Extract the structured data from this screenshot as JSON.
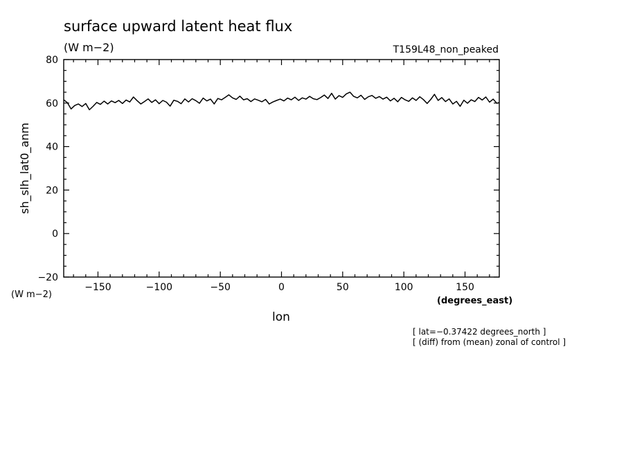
{
  "chart_data": {
    "type": "line",
    "title": "surface upward latent heat flux",
    "subtitle_units": "(W m−2)",
    "experiment": "T159L48_non_peaked",
    "ylabel": "sh_slh_lat0_anm",
    "ylabel_units": "(W m−2)",
    "xlabel": "lon",
    "xlabel_units": "(degrees_east)",
    "notes": [
      "[ lat=−0.37422 degrees_north ]",
      "[ (diff) from (mean) zonal of control ]"
    ],
    "xlim": [
      -178,
      178
    ],
    "ylim": [
      -20,
      80
    ],
    "x_ticks": [
      -150,
      -100,
      -50,
      0,
      50,
      100,
      150
    ],
    "x_tick_labels": [
      "−150",
      "−100",
      "−50",
      "0",
      "50",
      "100",
      "150"
    ],
    "y_ticks": [
      -20,
      0,
      20,
      40,
      60,
      80
    ],
    "y_tick_labels": [
      "−20",
      "0",
      "20",
      "40",
      "60",
      "80"
    ],
    "grid": false,
    "line_color": "#000000",
    "series": [
      {
        "x": [
          -178,
          -175,
          -172,
          -169,
          -166,
          -163,
          -160,
          -157,
          -154,
          -151,
          -148,
          -145,
          -142,
          -139,
          -136,
          -133,
          -130,
          -127,
          -124,
          -121,
          -118,
          -115,
          -112,
          -109,
          -106,
          -103,
          -100,
          -97,
          -94,
          -91,
          -88,
          -85,
          -82,
          -79,
          -76,
          -73,
          -70,
          -67,
          -64,
          -61,
          -58,
          -55,
          -52,
          -49,
          -46,
          -43,
          -40,
          -37,
          -34,
          -31,
          -28,
          -25,
          -22,
          -19,
          -16,
          -13,
          -10,
          -7,
          -4,
          -1,
          2,
          5,
          8,
          11,
          14,
          17,
          20,
          23,
          26,
          29,
          32,
          35,
          38,
          41,
          44,
          47,
          50,
          53,
          56,
          59,
          62,
          65,
          68,
          71,
          74,
          77,
          80,
          83,
          86,
          89,
          92,
          95,
          98,
          101,
          104,
          107,
          110,
          113,
          116,
          119,
          122,
          125,
          128,
          131,
          134,
          137,
          140,
          143,
          146,
          149,
          152,
          155,
          158,
          161,
          164,
          167,
          170,
          173,
          176,
          178
        ],
        "y": [
          61.5,
          60.2,
          57.3,
          58.9,
          59.6,
          58.4,
          59.8,
          56.9,
          58.5,
          60.3,
          59.4,
          60.9,
          59.6,
          61.0,
          60.2,
          61.2,
          59.8,
          61.4,
          60.5,
          62.8,
          61.1,
          59.6,
          60.7,
          61.9,
          60.3,
          61.5,
          59.7,
          61.2,
          60.4,
          58.6,
          61.3,
          60.8,
          59.7,
          61.9,
          60.5,
          62.0,
          61.1,
          59.9,
          62.3,
          61.0,
          61.8,
          59.6,
          62.1,
          61.5,
          62.6,
          63.8,
          62.4,
          61.7,
          63.2,
          61.5,
          62.0,
          60.7,
          61.9,
          61.3,
          60.6,
          61.7,
          59.6,
          60.5,
          61.2,
          61.8,
          61.0,
          62.3,
          61.5,
          62.7,
          61.2,
          62.4,
          61.8,
          63.1,
          62.0,
          61.6,
          62.5,
          63.7,
          62.1,
          64.5,
          61.8,
          63.4,
          62.6,
          64.2,
          65.0,
          63.1,
          62.4,
          63.6,
          61.7,
          62.9,
          63.5,
          62.2,
          63.0,
          61.8,
          62.7,
          61.0,
          62.2,
          60.6,
          62.6,
          61.5,
          60.8,
          62.4,
          61.2,
          62.9,
          61.6,
          59.8,
          61.7,
          64.0,
          61.2,
          62.5,
          60.7,
          61.9,
          59.6,
          60.8,
          58.5,
          61.3,
          59.9,
          61.5,
          60.7,
          62.6,
          61.4,
          62.8,
          60.4,
          61.8,
          59.9,
          60.3
        ]
      }
    ]
  }
}
